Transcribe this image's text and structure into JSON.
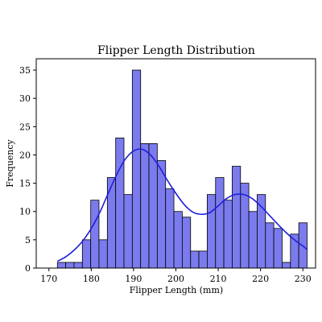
{
  "chart_data": {
    "type": "bar",
    "title": "Flipper Length Distribution",
    "xlabel": "Flipper Length (mm)",
    "ylabel": "Frequency",
    "xlim": [
      167,
      233
    ],
    "ylim": [
      0,
      37
    ],
    "xticks": [
      170,
      180,
      190,
      200,
      210,
      220,
      230
    ],
    "yticks": [
      0,
      5,
      10,
      15,
      20,
      25,
      30,
      35
    ],
    "bin_edges": [
      172,
      173.97,
      175.93,
      177.9,
      179.87,
      181.83,
      183.8,
      185.77,
      187.73,
      189.7,
      191.67,
      193.63,
      195.6,
      197.57,
      199.53,
      201.5,
      203.47,
      205.43,
      207.4,
      209.37,
      211.33,
      213.3,
      215.27,
      217.23,
      219.2,
      221.17,
      223.13,
      225.1,
      227.07,
      229.03,
      231
    ],
    "counts": [
      1,
      1,
      1,
      5,
      12,
      5,
      16,
      23,
      13,
      35,
      22,
      22,
      19,
      14,
      10,
      9,
      3,
      3,
      13,
      16,
      12,
      18,
      15,
      10,
      13,
      8,
      7,
      1,
      6,
      8
    ],
    "kde": {
      "x": [
        172,
        174,
        176,
        178,
        180,
        182,
        184,
        186,
        188,
        190,
        192,
        194,
        196,
        198,
        200,
        202,
        204,
        206,
        208,
        210,
        212,
        214,
        216,
        218,
        220,
        222,
        224,
        226,
        228,
        230,
        231
      ],
      "y": [
        1.2,
        2.0,
        3.2,
        4.8,
        7.0,
        9.8,
        13.2,
        16.5,
        19.2,
        20.7,
        21.0,
        20.0,
        18.0,
        15.5,
        13.2,
        11.2,
        9.9,
        9.5,
        9.8,
        11.0,
        12.3,
        13.0,
        13.0,
        12.3,
        11.0,
        9.4,
        7.8,
        6.3,
        5.0,
        3.9,
        3.3
      ]
    },
    "grid": false,
    "colors": {
      "bar_fill": "#7b7bee",
      "bar_edge": "#000000",
      "kde_line": "#1f1fdc"
    }
  }
}
